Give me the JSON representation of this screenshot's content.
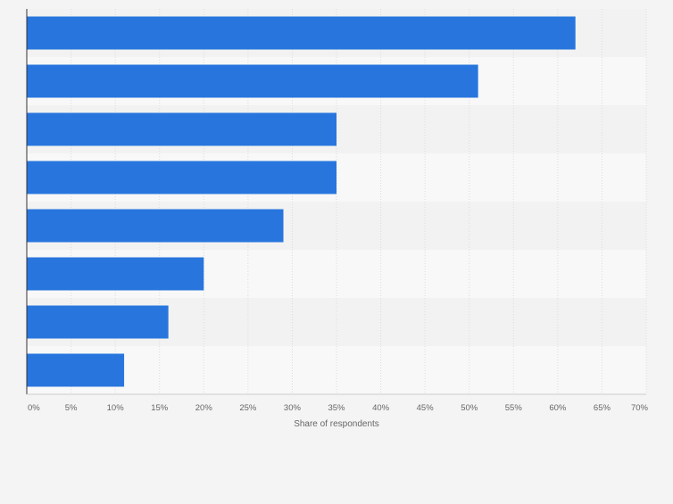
{
  "chart_data": {
    "type": "bar",
    "orientation": "horizontal",
    "title": "",
    "xlabel": "Share of respondents",
    "ylabel": "",
    "categories": [
      "",
      "",
      "",
      "",
      "",
      "",
      "",
      ""
    ],
    "values": [
      62,
      51,
      35,
      35,
      29,
      20,
      16,
      11
    ],
    "value_unit": "%",
    "xlim": [
      0,
      70
    ],
    "x_ticks": [
      "0%",
      "5%",
      "10%",
      "15%",
      "20%",
      "25%",
      "30%",
      "35%",
      "40%",
      "45%",
      "50%",
      "55%",
      "60%",
      "65%",
      "70%"
    ],
    "grid": true,
    "bar_color": "#2876dd",
    "band_colors": [
      "#f2f2f2",
      "#f8f8f8"
    ],
    "gridline_color": "#dddddd",
    "axis_color": "#333333",
    "label_color": "#666666"
  }
}
